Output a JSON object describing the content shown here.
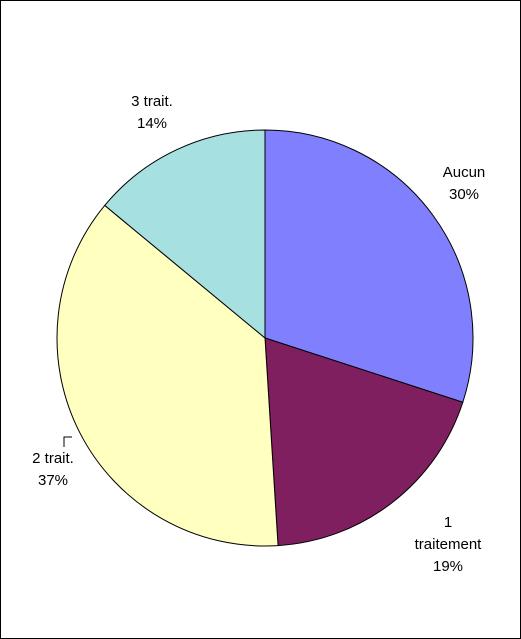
{
  "chart_data": {
    "type": "pie",
    "slices": [
      {
        "label_lines": [
          "Aucun"
        ],
        "percent_label": "30%",
        "value": 30,
        "color": "#8080FF"
      },
      {
        "label_lines": [
          "1",
          "traitement"
        ],
        "percent_label": "19%",
        "value": 19,
        "color": "#7F1F5F"
      },
      {
        "label_lines": [
          "2 trait."
        ],
        "percent_label": "37%",
        "value": 37,
        "color": "#FFFFC0"
      },
      {
        "label_lines": [
          "3 trait."
        ],
        "percent_label": "14%",
        "value": 14,
        "color": "#A6E0E0"
      }
    ],
    "start_angle_deg": 0,
    "direction": "clockwise",
    "legend": "none"
  }
}
